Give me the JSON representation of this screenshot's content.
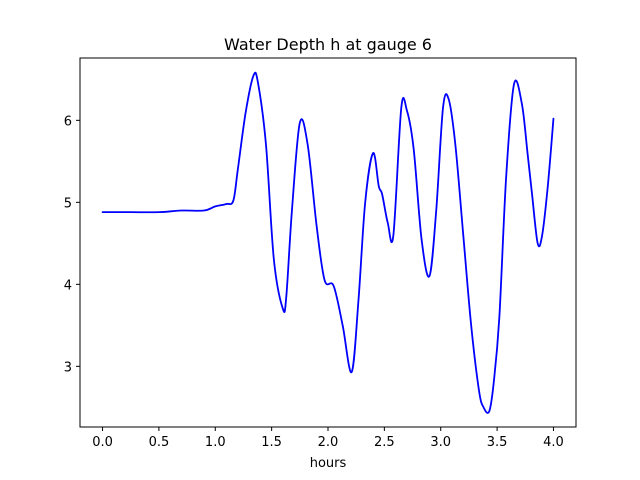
{
  "chart_data": {
    "type": "line",
    "title": "Water Depth h at gauge 6",
    "xlabel": "hours",
    "ylabel": "",
    "xlim": [
      -0.2,
      4.2
    ],
    "ylim": [
      2.26,
      6.76
    ],
    "xticks": [
      0.0,
      0.5,
      1.0,
      1.5,
      2.0,
      2.5,
      3.0,
      3.5,
      4.0
    ],
    "xtick_labels": [
      "0.0",
      "0.5",
      "1.0",
      "1.5",
      "2.0",
      "2.5",
      "3.0",
      "3.5",
      "4.0"
    ],
    "yticks": [
      3,
      4,
      5,
      6
    ],
    "ytick_labels": [
      "3",
      "4",
      "5",
      "6"
    ],
    "grid": false,
    "series": [
      {
        "color": "#0000ff",
        "x": [
          0.0,
          0.25,
          0.5,
          0.7,
          0.9,
          1.0,
          1.1,
          1.16,
          1.2,
          1.27,
          1.34,
          1.38,
          1.45,
          1.52,
          1.6,
          1.63,
          1.68,
          1.75,
          1.82,
          1.9,
          1.97,
          2.05,
          2.13,
          2.21,
          2.27,
          2.33,
          2.4,
          2.45,
          2.48,
          2.53,
          2.58,
          2.65,
          2.7,
          2.76,
          2.83,
          2.9,
          2.96,
          3.02,
          3.07,
          3.13,
          3.2,
          3.27,
          3.34,
          3.38,
          3.43,
          3.47,
          3.52,
          3.58,
          3.65,
          3.72,
          3.77,
          3.81,
          3.86,
          3.9,
          3.95,
          4.0
        ],
        "y": [
          4.88,
          4.88,
          4.88,
          4.9,
          4.9,
          4.95,
          4.98,
          5.02,
          5.4,
          6.1,
          6.55,
          6.45,
          5.7,
          4.3,
          3.7,
          3.85,
          4.9,
          5.97,
          5.7,
          4.7,
          4.05,
          3.98,
          3.5,
          2.93,
          3.8,
          5.0,
          5.6,
          5.2,
          5.1,
          4.75,
          4.6,
          6.15,
          6.12,
          5.65,
          4.55,
          4.1,
          4.9,
          6.15,
          6.26,
          5.7,
          4.6,
          3.5,
          2.7,
          2.5,
          2.45,
          2.8,
          3.6,
          5.3,
          6.44,
          6.2,
          5.6,
          5.1,
          4.5,
          4.6,
          5.2,
          6.02
        ]
      }
    ]
  }
}
